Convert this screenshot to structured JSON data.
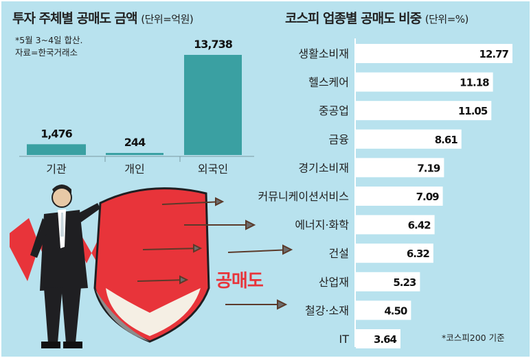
{
  "chart_data": [
    {
      "type": "bar",
      "title": "투자 주체별 공매도 금액",
      "unit": "(단위=억원)",
      "note_period": "*5월 3~4일 합산.",
      "note_source": "자료=한국거래소",
      "categories": [
        "기관",
        "개인",
        "외국인"
      ],
      "values": [
        1476,
        244,
        13738
      ],
      "value_labels": [
        "1,476",
        "244",
        "13,738"
      ],
      "color": "#3aa0a2"
    },
    {
      "type": "bar",
      "orientation": "horizontal",
      "title": "코스피 업종별 공매도 비중",
      "unit": "(단위=%)",
      "note": "*코스피200 기준",
      "categories": [
        "생활소비재",
        "헬스케어",
        "중공업",
        "금융",
        "경기소비재",
        "커뮤니케이션서비스",
        "에너지·화학",
        "건설",
        "산업재",
        "철강·소재",
        "IT"
      ],
      "values": [
        12.77,
        11.18,
        11.05,
        8.61,
        7.19,
        7.09,
        6.42,
        6.32,
        5.23,
        4.5,
        3.64
      ],
      "value_labels": [
        "12.77",
        "11.18",
        "11.05",
        "8.61",
        "7.19",
        "7.09",
        "6.42",
        "6.32",
        "5.23",
        "4.50",
        "3.64"
      ],
      "color": "#ffffff"
    }
  ],
  "illustration": {
    "label": "공매도",
    "accent": "#e8343a"
  }
}
